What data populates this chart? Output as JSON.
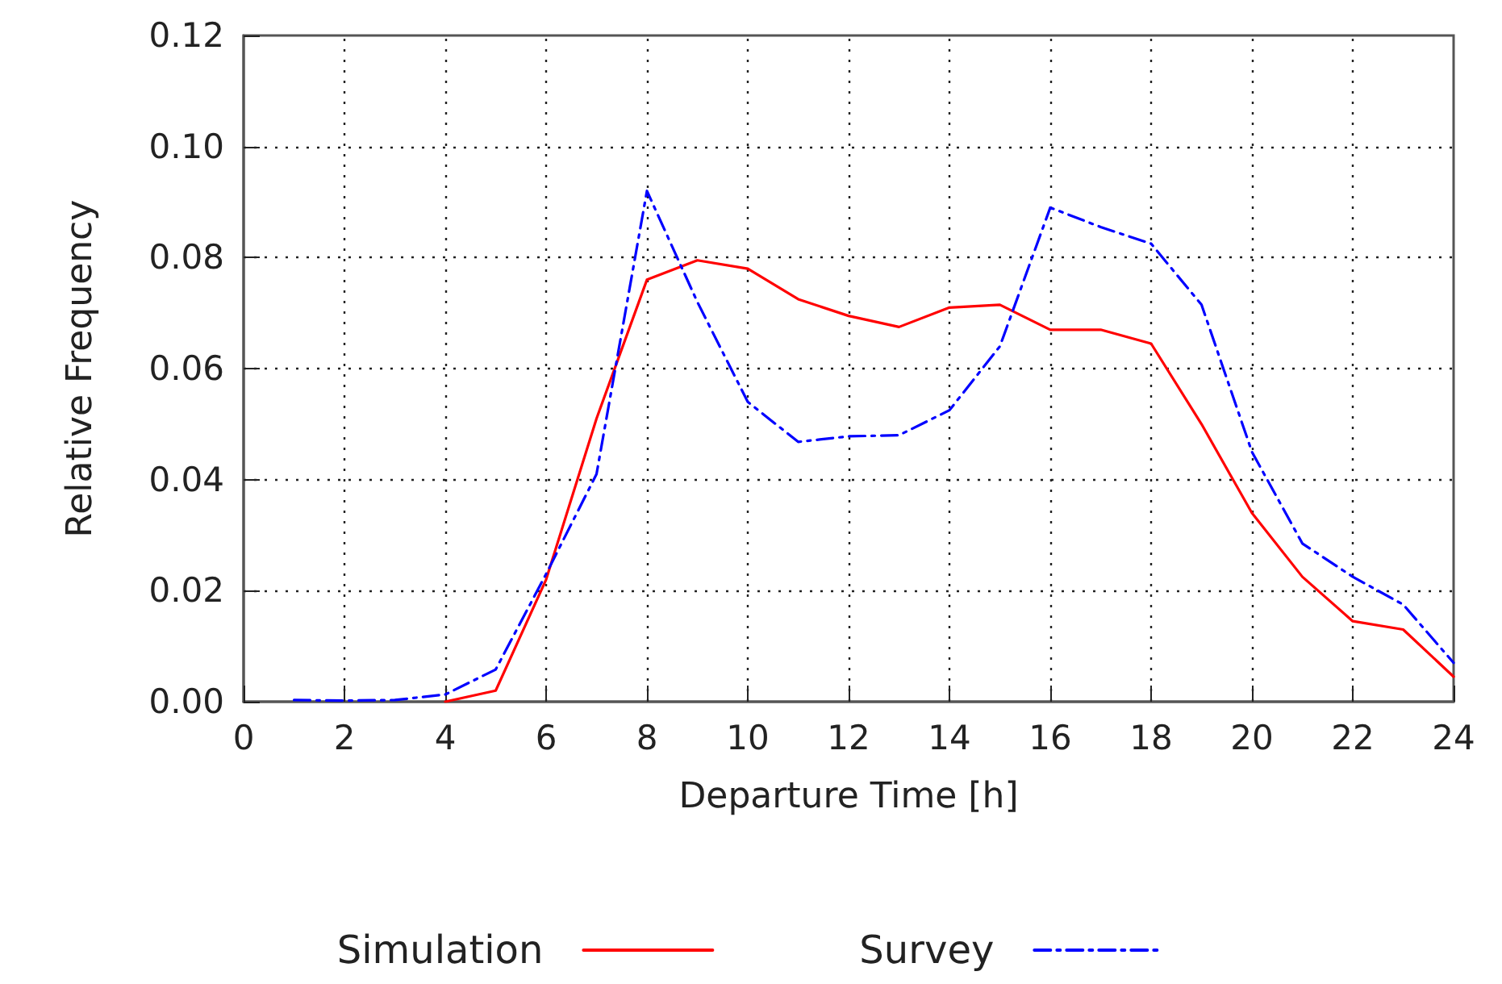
{
  "chart_data": {
    "type": "line",
    "xlabel": "Departure Time [h]",
    "ylabel": "Relative Frequency",
    "xlim": [
      0,
      24
    ],
    "xticks": [
      0,
      2,
      4,
      6,
      8,
      10,
      12,
      14,
      16,
      18,
      20,
      22,
      24
    ],
    "ylim": [
      0,
      0.12
    ],
    "yticks": [
      {
        "value": 0,
        "label": "0.00"
      },
      {
        "value": 0.02,
        "label": "0.02"
      },
      {
        "value": 0.04,
        "label": "0.04"
      },
      {
        "value": 0.06,
        "label": "0.06"
      },
      {
        "value": 0.08,
        "label": "0.08"
      },
      {
        "value": 0.1,
        "label": "0.10"
      },
      {
        "value": 0.12,
        "label": "0.12"
      }
    ],
    "grid": true,
    "legend": "bottom",
    "marker": "none",
    "series": [
      {
        "name": "Simulation",
        "color": "#ff0000",
        "line_style": "solid",
        "x": [
          4,
          5,
          6,
          7,
          8,
          9,
          10,
          11,
          12,
          13,
          14,
          15,
          16,
          17,
          18,
          19,
          20,
          21,
          22,
          23,
          24
        ],
        "values": [
          0,
          0.002,
          0.022,
          0.051,
          0.076,
          0.0795,
          0.078,
          0.0725,
          0.0695,
          0.0675,
          0.071,
          0.0715,
          0.067,
          0.067,
          0.0645,
          0.05,
          0.034,
          0.0225,
          0.0145,
          0.013,
          0.0045
        ]
      },
      {
        "name": "Survey",
        "color": "#0000ff",
        "line_style": "dashed",
        "x": [
          1,
          2,
          3,
          4,
          5,
          6,
          7,
          8,
          9,
          10,
          11,
          12,
          13,
          14,
          15,
          16,
          17,
          18,
          19,
          20,
          21,
          22,
          23,
          24
        ],
        "values": [
          0.0003,
          0.0002,
          0.0003,
          0.0013,
          0.0058,
          0.023,
          0.041,
          0.092,
          0.072,
          0.054,
          0.0468,
          0.0478,
          0.048,
          0.0525,
          0.064,
          0.089,
          0.0855,
          0.0825,
          0.0715,
          0.045,
          0.0285,
          0.0225,
          0.0175,
          0.007
        ]
      }
    ]
  }
}
